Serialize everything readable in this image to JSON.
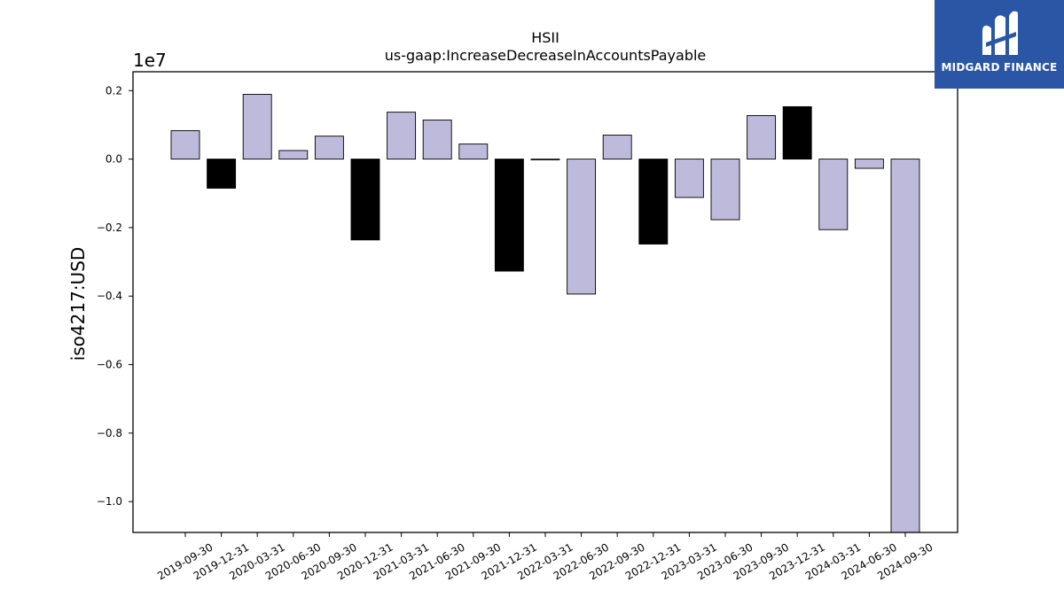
{
  "chart_data": {
    "type": "bar",
    "title": "HSII",
    "subtitle": "us-gaap:IncreaseDecreaseInAccountsPayable",
    "ylabel": "iso4217:USD",
    "y_multiplier": "1e7",
    "ylim": [
      -1.09,
      0.255
    ],
    "yticks": [
      0.2,
      0.0,
      -0.2,
      -0.4,
      -0.6,
      -0.8,
      -1.0
    ],
    "ytick_labels": [
      "0.2",
      "0.0",
      "−0.2",
      "−0.4",
      "−0.6",
      "−0.8",
      "−1.0"
    ],
    "categories": [
      "2019-09-30",
      "2019-12-31",
      "2020-03-31",
      "2020-06-30",
      "2020-09-30",
      "2020-12-31",
      "2021-03-31",
      "2021-06-30",
      "2021-09-30",
      "2021-12-31",
      "2022-03-31",
      "2022-06-30",
      "2022-09-30",
      "2022-12-31",
      "2023-03-31",
      "2023-06-30",
      "2023-09-30",
      "2023-12-31",
      "2024-03-31",
      "2024-06-30",
      "2024-09-30"
    ],
    "values": [
      0.083,
      -0.085,
      0.189,
      0.025,
      0.067,
      -0.236,
      0.137,
      0.114,
      0.044,
      -0.327,
      -0.002,
      -0.394,
      0.07,
      -0.248,
      -0.112,
      -0.177,
      0.127,
      0.153,
      -0.206,
      -0.027,
      -1.09
    ],
    "highlight": [
      false,
      true,
      false,
      false,
      false,
      true,
      false,
      false,
      false,
      true,
      false,
      false,
      false,
      true,
      false,
      false,
      false,
      true,
      false,
      false,
      false
    ],
    "colors": {
      "bar": "#bebadb",
      "highlight": "#000000",
      "edge": "#000000"
    },
    "grid": false
  },
  "logo": {
    "text": "MIDGARD FINANCE",
    "background": "#2b56a6"
  }
}
